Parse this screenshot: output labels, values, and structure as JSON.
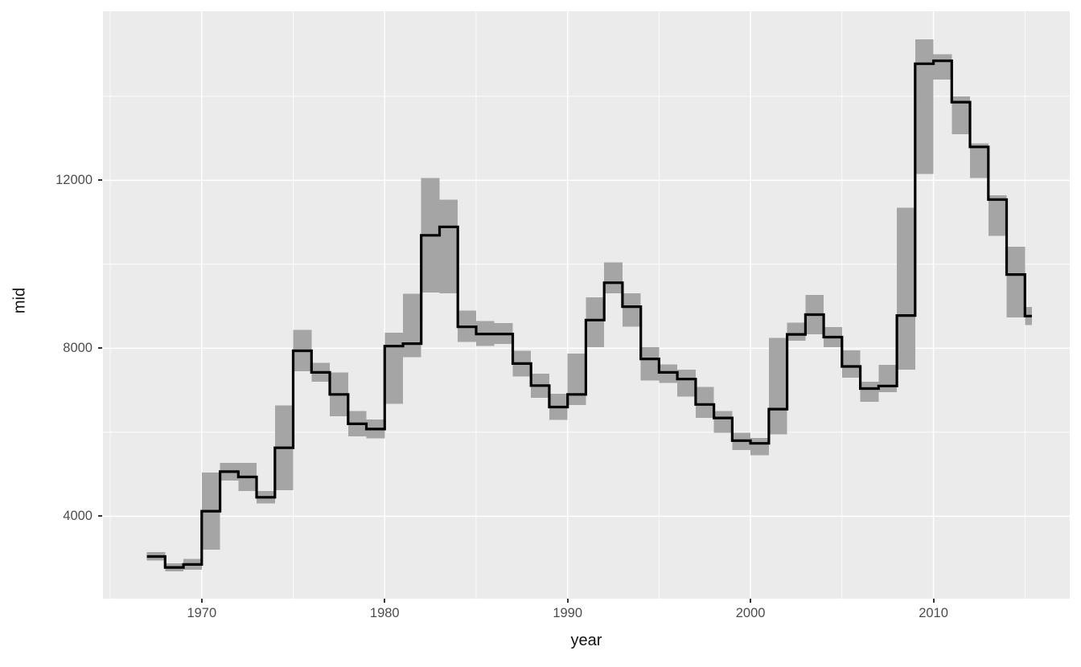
{
  "chart_data": {
    "type": "step-ribbon",
    "title": "",
    "xlabel": "year",
    "ylabel": "mid",
    "x_domain": [
      1964.6,
      2017.45
    ],
    "y_domain": [
      2035,
      16025
    ],
    "x_ticks": [
      1970,
      1980,
      1990,
      2000,
      2010
    ],
    "x_minor": [
      1965,
      1975,
      1985,
      1995,
      2005,
      2015
    ],
    "y_ticks": [
      4000,
      8000,
      12000
    ],
    "y_minor": [
      6000,
      10000,
      14000
    ],
    "grid": "on",
    "legend": "none",
    "last_bar_end": 2015.38,
    "colors": {
      "panel_bg": "#EBEBEB",
      "grid": "#FFFFFF",
      "ribbon": "#A5A5A5",
      "line": "#000000",
      "tick_label": "#4D4D4D",
      "axis_title": "#111111",
      "tick_mark": "#333333"
    },
    "series": [
      {
        "year": 1967,
        "min": 2944,
        "max": 3143,
        "mid": 3040
      },
      {
        "year": 1968,
        "min": 2685,
        "max": 2878,
        "mid": 2780
      },
      {
        "year": 1969,
        "min": 2720,
        "max": 2980,
        "mid": 2850
      },
      {
        "year": 1970,
        "min": 3200,
        "max": 5040,
        "mid": 4120
      },
      {
        "year": 1971,
        "min": 4850,
        "max": 5270,
        "mid": 5060
      },
      {
        "year": 1972,
        "min": 4600,
        "max": 5270,
        "mid": 4935
      },
      {
        "year": 1973,
        "min": 4300,
        "max": 4600,
        "mid": 4450
      },
      {
        "year": 1974,
        "min": 4620,
        "max": 6640,
        "mid": 5630
      },
      {
        "year": 1975,
        "min": 7450,
        "max": 8433,
        "mid": 7940
      },
      {
        "year": 1976,
        "min": 7200,
        "max": 7650,
        "mid": 7425
      },
      {
        "year": 1977,
        "min": 6375,
        "max": 7425,
        "mid": 6900
      },
      {
        "year": 1978,
        "min": 5905,
        "max": 6500,
        "mid": 6200
      },
      {
        "year": 1979,
        "min": 5850,
        "max": 6300,
        "mid": 6075
      },
      {
        "year": 1980,
        "min": 6675,
        "max": 8365,
        "mid": 8050
      },
      {
        "year": 1981,
        "min": 7790,
        "max": 9300,
        "mid": 8110
      },
      {
        "year": 1982,
        "min": 9330,
        "max": 12051,
        "mid": 10690
      },
      {
        "year": 1983,
        "min": 9310,
        "max": 11534,
        "mid": 10890
      },
      {
        "year": 1984,
        "min": 8150,
        "max": 8900,
        "mid": 8510
      },
      {
        "year": 1985,
        "min": 8050,
        "max": 8650,
        "mid": 8340
      },
      {
        "year": 1986,
        "min": 8100,
        "max": 8600,
        "mid": 8340
      },
      {
        "year": 1987,
        "min": 7330,
        "max": 7940,
        "mid": 7635
      },
      {
        "year": 1988,
        "min": 6820,
        "max": 7395,
        "mid": 7110
      },
      {
        "year": 1989,
        "min": 6290,
        "max": 6915,
        "mid": 6600
      },
      {
        "year": 1990,
        "min": 6650,
        "max": 7870,
        "mid": 6900
      },
      {
        "year": 1991,
        "min": 8030,
        "max": 9210,
        "mid": 8670
      },
      {
        "year": 1992,
        "min": 9310,
        "max": 10040,
        "mid": 9560
      },
      {
        "year": 1993,
        "min": 8510,
        "max": 9310,
        "mid": 8990
      },
      {
        "year": 1994,
        "min": 7235,
        "max": 8030,
        "mid": 7745
      },
      {
        "year": 1995,
        "min": 7170,
        "max": 7615,
        "mid": 7425
      },
      {
        "year": 1996,
        "min": 6850,
        "max": 7490,
        "mid": 7265
      },
      {
        "year": 1997,
        "min": 6340,
        "max": 7075,
        "mid": 6660
      },
      {
        "year": 1998,
        "min": 5990,
        "max": 6500,
        "mid": 6340
      },
      {
        "year": 1999,
        "min": 5575,
        "max": 5990,
        "mid": 5800
      },
      {
        "year": 2000,
        "min": 5450,
        "max": 5860,
        "mid": 5735
      },
      {
        "year": 2001,
        "min": 5950,
        "max": 8250,
        "mid": 6550
      },
      {
        "year": 2002,
        "min": 8180,
        "max": 8605,
        "mid": 8330
      },
      {
        "year": 2003,
        "min": 8330,
        "max": 9265,
        "mid": 8800
      },
      {
        "year": 2004,
        "min": 8030,
        "max": 8500,
        "mid": 8265
      },
      {
        "year": 2005,
        "min": 7300,
        "max": 7950,
        "mid": 7565
      },
      {
        "year": 2006,
        "min": 6725,
        "max": 7200,
        "mid": 7040
      },
      {
        "year": 2007,
        "min": 6950,
        "max": 7600,
        "mid": 7100
      },
      {
        "year": 2008,
        "min": 7490,
        "max": 11350,
        "mid": 8780
      },
      {
        "year": 2009,
        "min": 12150,
        "max": 15352,
        "mid": 14775
      },
      {
        "year": 2010,
        "min": 14400,
        "max": 15000,
        "mid": 14845
      },
      {
        "year": 2011,
        "min": 13100,
        "max": 14000,
        "mid": 13860
      },
      {
        "year": 2012,
        "min": 12050,
        "max": 12880,
        "mid": 12795
      },
      {
        "year": 2013,
        "min": 10680,
        "max": 11640,
        "mid": 11540
      },
      {
        "year": 2014,
        "min": 8730,
        "max": 10420,
        "mid": 9755
      },
      {
        "year": 2015,
        "min": 8550,
        "max": 8980,
        "mid": 8765
      }
    ]
  }
}
